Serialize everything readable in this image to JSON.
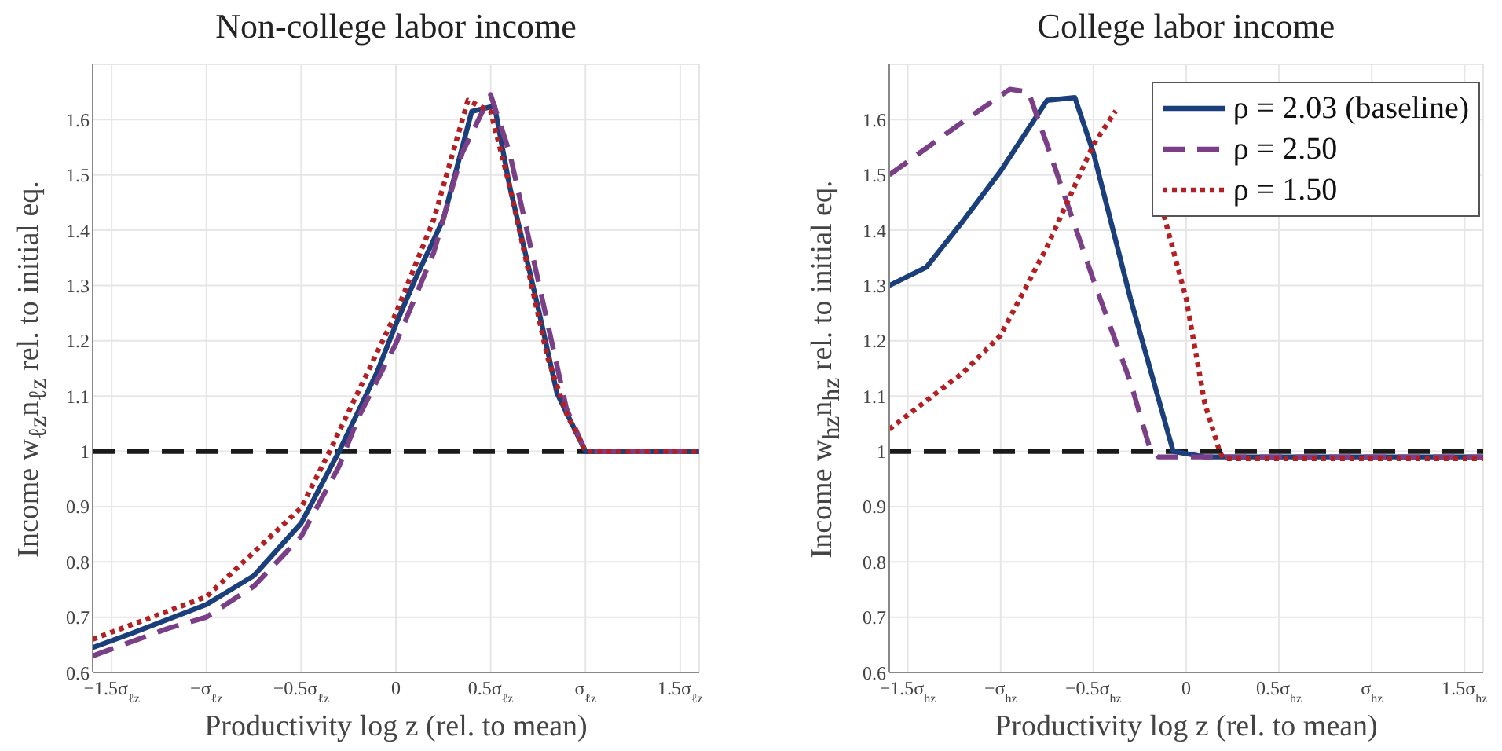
{
  "chart_data": [
    {
      "type": "line",
      "title": "Non-college labor income",
      "xlabel": "Productivity log z (rel. to mean)",
      "ylabel": "Income w$_{ℓz}$n$_{ℓz}$ rel. to initial eq.",
      "xlim": [
        -1.6,
        1.6
      ],
      "ylim": [
        0.6,
        1.7
      ],
      "xticks": [
        {
          "value": -1.5,
          "label": "−1.5σ$_{ℓz}$"
        },
        {
          "value": -1,
          "label": "−σ$_{ℓz}$"
        },
        {
          "value": -0.5,
          "label": "−0.5σ$_{ℓz}$"
        },
        0,
        {
          "value": 0.5,
          "label": "0.5σ$_{ℓz}$"
        },
        {
          "value": 1,
          "label": "σ$_{ℓz}$"
        },
        {
          "value": 1.5,
          "label": "1.5σ$_{ℓz}$"
        }
      ],
      "yticks": [
        0.6,
        0.7,
        0.8,
        0.9,
        1,
        1.1,
        1.2,
        1.3,
        1.4,
        1.5,
        1.6
      ],
      "grid": true,
      "marker": "none",
      "ref_lines": [
        {
          "axis": "y",
          "value": 1,
          "color": "#1a1a1a",
          "line_style": "dashed"
        }
      ],
      "series": [
        {
          "color": "#1b3f7a",
          "line_style": "solid",
          "x": [
            -1.6,
            -1.4,
            -1.0,
            -0.75,
            -0.5,
            -0.3,
            -0.1,
            0,
            0.1,
            0.25,
            0.4,
            0.52,
            0.6,
            0.75,
            0.85,
            1.0,
            1.6
          ],
          "values": [
            0.645,
            0.67,
            0.723,
            0.775,
            0.87,
            1.0,
            1.143,
            1.23,
            1.31,
            1.42,
            1.615,
            1.625,
            1.48,
            1.26,
            1.105,
            1.0,
            1.0
          ]
        },
        {
          "color": "#7b3f87",
          "line_style": "dashed",
          "x": [
            -1.6,
            -1.2,
            -1.0,
            -0.75,
            -0.5,
            -0.3,
            -0.2,
            0,
            0.2,
            0.35,
            0.5,
            0.6,
            0.75,
            0.9,
            1.0,
            1.6
          ],
          "values": [
            0.63,
            0.68,
            0.7,
            0.756,
            0.846,
            0.973,
            1.06,
            1.195,
            1.36,
            1.54,
            1.645,
            1.54,
            1.31,
            1.077,
            1.0,
            1.0
          ]
        },
        {
          "color": "#b22024",
          "line_style": "dotted",
          "x": [
            -1.6,
            -1.0,
            -0.5,
            -0.35,
            0,
            0.2,
            0.38,
            0.5,
            0.6,
            0.8,
            0.9,
            1.0,
            1.6
          ],
          "values": [
            0.66,
            0.737,
            0.898,
            1.0,
            1.25,
            1.42,
            1.635,
            1.615,
            1.48,
            1.17,
            1.068,
            1.0,
            1.0
          ]
        }
      ]
    },
    {
      "type": "line",
      "title": "College labor income",
      "xlabel": "Productivity log z (rel. to mean)",
      "ylabel": "Income w$_{hz}$n$_{hz}$ rel. to initial eq.",
      "xlim": [
        -1.6,
        1.6
      ],
      "ylim": [
        0.6,
        1.7
      ],
      "xticks": [
        {
          "value": -1.5,
          "label": "−1.5σ$_{hz}$"
        },
        {
          "value": -1,
          "label": "−σ$_{hz}$"
        },
        {
          "value": -0.5,
          "label": "−0.5σ$_{hz}$"
        },
        0,
        {
          "value": 0.5,
          "label": "0.5σ$_{hz}$"
        },
        {
          "value": 1,
          "label": "σ$_{hz}$"
        },
        {
          "value": 1.5,
          "label": "1.5σ$_{hz}$"
        }
      ],
      "yticks": [
        0.6,
        0.7,
        0.8,
        0.9,
        1,
        1.1,
        1.2,
        1.3,
        1.4,
        1.5,
        1.6
      ],
      "grid": true,
      "marker": "none",
      "legend": "top right",
      "ref_lines": [
        {
          "axis": "y",
          "value": 1,
          "color": "#1a1a1a",
          "line_style": "dashed"
        }
      ],
      "series": [
        {
          "name": "ρ = 2.03 (baseline)",
          "color": "#1b3f7a",
          "line_style": "solid",
          "x": [
            -1.6,
            -1.4,
            -1.2,
            -1.0,
            -0.75,
            -0.6,
            -0.5,
            -0.3,
            -0.07,
            0.1,
            1.6
          ],
          "values": [
            1.3,
            1.333,
            1.418,
            1.507,
            1.635,
            1.64,
            1.54,
            1.276,
            1.0,
            0.99,
            0.99
          ]
        },
        {
          "name": "ρ = 2.50",
          "color": "#7b3f87",
          "line_style": "dashed",
          "x": [
            -1.6,
            -1.2,
            -0.95,
            -0.85,
            -0.75,
            -0.5,
            -0.3,
            -0.2,
            -0.15,
            1.6
          ],
          "values": [
            1.5,
            1.597,
            1.655,
            1.65,
            1.555,
            1.31,
            1.125,
            1.01,
            0.99,
            0.99
          ]
        },
        {
          "name": "ρ = 1.50",
          "color": "#b22024",
          "line_style": "dotted",
          "x": [
            -1.6,
            -1.2,
            -1.0,
            -0.75,
            -0.5,
            -0.38,
            -0.25,
            -0.12,
            0,
            0.1,
            0.18,
            0.2,
            1.6
          ],
          "values": [
            1.04,
            1.143,
            1.21,
            1.37,
            1.555,
            1.616,
            null,
            1.427,
            1.276,
            1.087,
            1.0,
            0.987,
            0.987
          ]
        }
      ]
    }
  ]
}
